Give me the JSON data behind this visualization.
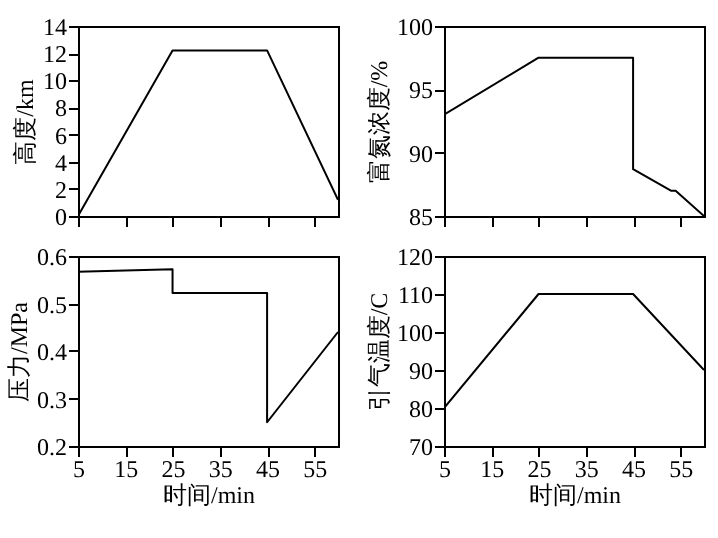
{
  "chart_data": [
    {
      "type": "line",
      "ylabel": "高度/km",
      "x": [
        5,
        25,
        45,
        60
      ],
      "values": [
        0,
        12.2,
        12.2,
        1.2
      ],
      "color": "#000000",
      "xlim": [
        5,
        60
      ],
      "xticks": [
        5,
        15,
        25,
        35,
        45,
        55
      ],
      "ylim": [
        0,
        14
      ],
      "yticks": [
        0,
        2,
        4,
        6,
        8,
        10,
        12,
        14
      ],
      "tick_labels": "y",
      "grid": false,
      "marker": "none",
      "line_style": "solid"
    },
    {
      "type": "line",
      "ylabel": "富氮浓度/%",
      "x": [
        5,
        25,
        45,
        45,
        53,
        54,
        60
      ],
      "values": [
        93,
        97.5,
        97.5,
        88.7,
        87,
        87,
        85
      ],
      "color": "#000000",
      "xlim": [
        5,
        60
      ],
      "xticks": [
        5,
        15,
        25,
        35,
        45,
        55
      ],
      "ylim": [
        85,
        100
      ],
      "yticks": [
        85,
        90,
        95,
        100
      ],
      "tick_labels": "y",
      "grid": false,
      "marker": "none",
      "line_style": "solid"
    },
    {
      "type": "line",
      "xlabel": "时间/min",
      "ylabel": "压力/MPa",
      "x": [
        5,
        25,
        25,
        45,
        45,
        60
      ],
      "values": [
        0.567,
        0.572,
        0.522,
        0.522,
        0.25,
        0.44
      ],
      "color": "#000000",
      "xlim": [
        5,
        60
      ],
      "xticks": [
        5,
        15,
        25,
        35,
        45,
        55
      ],
      "ylim": [
        0.2,
        0.6
      ],
      "yticks": [
        0.2,
        0.3,
        0.4,
        0.5,
        0.6
      ],
      "grid": false,
      "marker": "none",
      "line_style": "solid"
    },
    {
      "type": "line",
      "xlabel": "时间/min",
      "ylabel": "引气温度/C",
      "x": [
        5,
        25,
        45,
        60
      ],
      "values": [
        80,
        110,
        110,
        90
      ],
      "color": "#000000",
      "xlim": [
        5,
        60
      ],
      "xticks": [
        5,
        15,
        25,
        35,
        45,
        55
      ],
      "ylim": [
        70,
        120
      ],
      "yticks": [
        70,
        80,
        90,
        100,
        110,
        120
      ],
      "grid": false,
      "marker": "none",
      "line_style": "solid"
    }
  ]
}
